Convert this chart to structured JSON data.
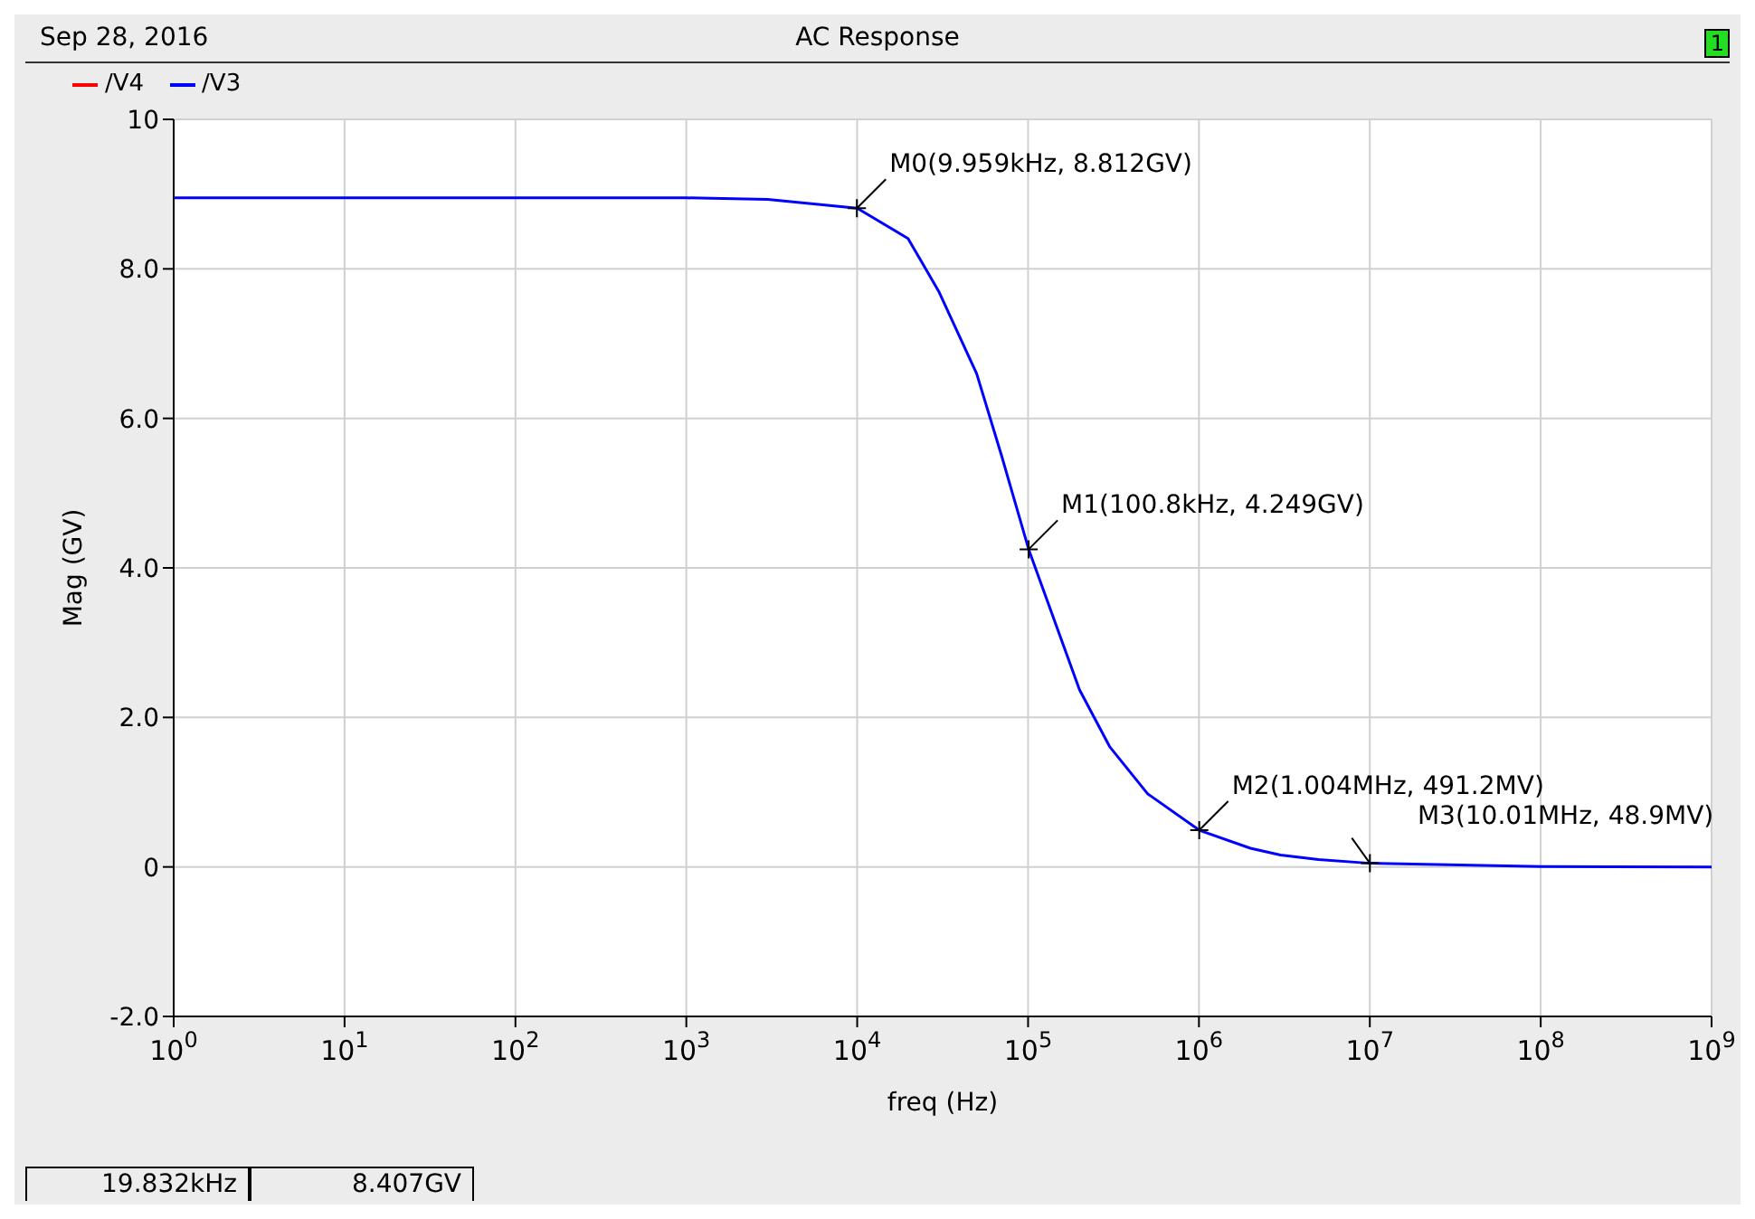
{
  "chart_data": {
    "type": "line",
    "title": "AC Response",
    "xlabel": "freq (Hz)",
    "ylabel": "Mag (GV)",
    "log": "x",
    "grid": true,
    "legend": "top left",
    "marker": "none",
    "line_style": "solid",
    "x": [
      1,
      10,
      100,
      1000,
      3000,
      10000,
      19832,
      30000,
      50000,
      70000,
      100800,
      200000,
      300000,
      500000,
      1004000,
      2000000,
      3000000,
      5000000,
      10010000,
      100000000,
      1000000000
    ],
    "series": [
      {
        "name": "/V4",
        "color": "#ff0000",
        "values": [
          null,
          null,
          null,
          null,
          null,
          null,
          null,
          null,
          null,
          null,
          null,
          null,
          null,
          null,
          null,
          null,
          null,
          null,
          null,
          null,
          null
        ]
      },
      {
        "name": "/V3",
        "color": "#0000ff",
        "values": [
          8.95,
          8.95,
          8.95,
          8.95,
          8.93,
          8.812,
          8.407,
          7.7,
          6.6,
          5.5,
          4.249,
          2.37,
          1.61,
          0.98,
          0.4912,
          0.25,
          0.16,
          0.1,
          0.0489,
          0.005,
          0
        ]
      }
    ],
    "xlim": [
      1,
      1000000000
    ],
    "xticks": [
      {
        "value": 1,
        "label": "10$^{0}$"
      },
      {
        "value": 10,
        "label": "10$^{1}$"
      },
      {
        "value": 100,
        "label": "10$^{2}$"
      },
      {
        "value": 1000,
        "label": "10$^{3}$"
      },
      {
        "value": 10000,
        "label": "10$^{4}$"
      },
      {
        "value": 100000,
        "label": "10$^{5}$"
      },
      {
        "value": 1000000,
        "label": "10$^{6}$"
      },
      {
        "value": 10000000,
        "label": "10$^{7}$"
      },
      {
        "value": 100000000,
        "label": "10$^{8}$"
      },
      {
        "value": 1000000000,
        "label": "10$^{9}$"
      }
    ],
    "ylim": [
      -2,
      10
    ],
    "yticks": [
      {
        "value": -2,
        "label": "-2.0"
      },
      0,
      {
        "value": 2,
        "label": "2.0"
      },
      {
        "value": 4,
        "label": "4.0"
      },
      {
        "value": 6,
        "label": "6.0"
      },
      {
        "value": 8,
        "label": "8.0"
      },
      10
    ],
    "annotations": [
      "Sep 28, 2016",
      "1",
      {
        "text": "M0(9.959kHz, 8.812GV)",
        "x": 9959,
        "y": 8.812
      },
      {
        "text": "M1(100.8kHz, 4.249GV)",
        "x": 100800,
        "y": 4.249
      },
      {
        "text": "M2(1.004MHz, 491.2MV)",
        "x": 1004000,
        "y": 0.4912
      },
      {
        "text": "M3(10.01MHz, 48.9MV)",
        "x": 10010000,
        "y": 0.0489
      },
      "19.832kHz",
      "8.407GV"
    ]
  }
}
